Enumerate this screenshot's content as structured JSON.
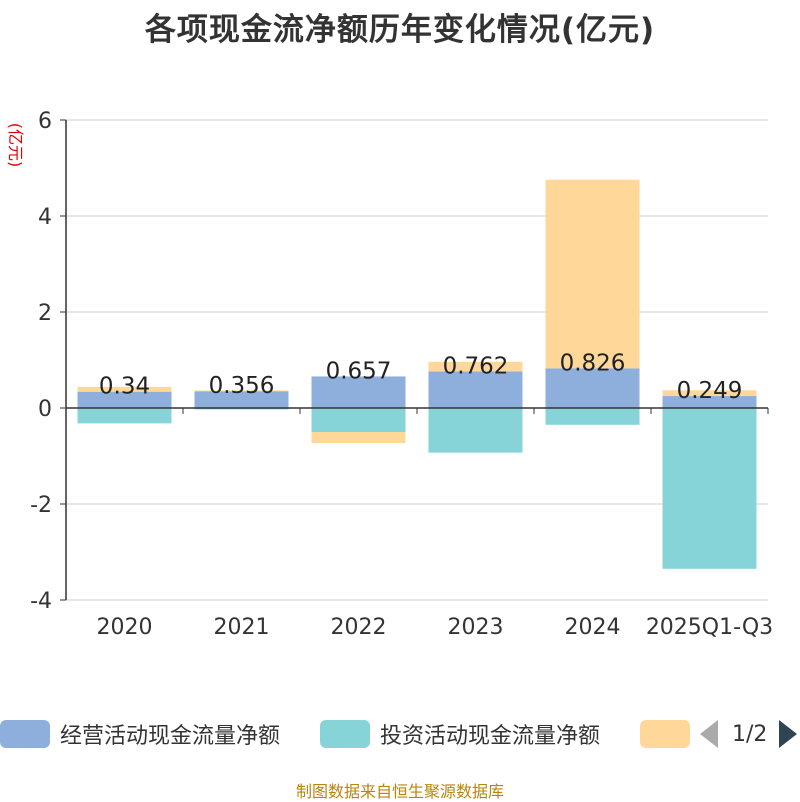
{
  "chart_data": {
    "type": "bar",
    "stacked": true,
    "title": "各项现金流净额历年变化情况(亿元)",
    "ylabel": "(亿元)",
    "xlabel": "",
    "categories": [
      "2020",
      "2021",
      "2022",
      "2023",
      "2024",
      "2025Q1-Q3"
    ],
    "ylim": [
      -4,
      6
    ],
    "yticks": [
      -4,
      -2,
      0,
      2,
      4,
      6
    ],
    "series": [
      {
        "name": "经营活动现金流量净额",
        "color": "#8eaedb",
        "values": [
          0.34,
          0.356,
          0.657,
          0.762,
          0.826,
          0.249
        ],
        "data_labels": [
          "0.34",
          "0.356",
          "0.657",
          "0.762",
          "0.826",
          "0.249"
        ]
      },
      {
        "name": "投资活动现金流量净额",
        "color": "#86d4d8",
        "values": [
          -0.32,
          -0.03,
          -0.5,
          -0.93,
          -0.35,
          -3.35
        ]
      },
      {
        "name": "",
        "color": "#ffd899",
        "values": [
          0.1,
          0.01,
          -0.23,
          0.2,
          3.93,
          0.12
        ]
      }
    ],
    "legend": {
      "position": "bottom",
      "page": "1/2"
    }
  },
  "source_note": "制图数据来自恒生聚源数据库"
}
